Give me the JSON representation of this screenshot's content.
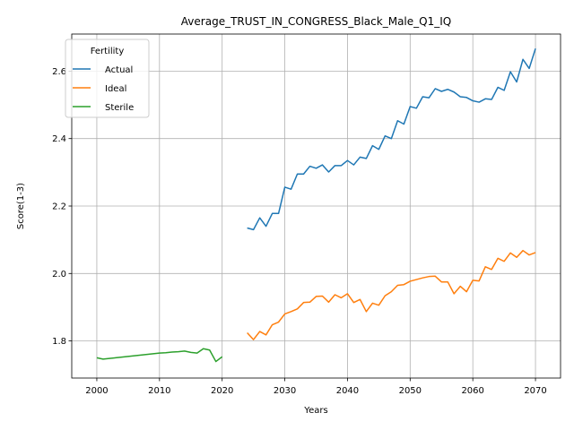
{
  "chart_data": {
    "type": "line",
    "title": "Average_TRUST_IN_CONGRESS_Black_Male_Q1_IQ",
    "xlabel": "Years",
    "ylabel": "Score(1-3)",
    "xlim": [
      1996,
      2074
    ],
    "ylim": [
      1.69,
      2.71
    ],
    "xticks": [
      2000,
      2010,
      2020,
      2030,
      2040,
      2050,
      2060,
      2070
    ],
    "yticks": [
      1.8,
      2.0,
      2.2,
      2.4,
      2.6
    ],
    "ytick_labels": [
      "1.8",
      "2.0",
      "2.2",
      "2.4",
      "2.6"
    ],
    "grid": true,
    "legend": {
      "title": "Fertility",
      "position": "top-left"
    },
    "series": [
      {
        "name": "Actual",
        "color": "#1f77b4",
        "x": [
          2024,
          2025,
          2026,
          2027,
          2028,
          2029,
          2030,
          2031,
          2032,
          2033,
          2034,
          2035,
          2036,
          2037,
          2038,
          2039,
          2040,
          2041,
          2042,
          2043,
          2044,
          2045,
          2046,
          2047,
          2048,
          2049,
          2050,
          2051,
          2052,
          2053,
          2054,
          2055,
          2056,
          2057,
          2058,
          2059,
          2060,
          2061,
          2062,
          2063,
          2064,
          2065,
          2066,
          2067,
          2068,
          2069,
          2070
        ],
        "y": [
          2.135,
          2.13,
          2.165,
          2.14,
          2.178,
          2.178,
          2.256,
          2.25,
          2.295,
          2.295,
          2.318,
          2.312,
          2.322,
          2.301,
          2.32,
          2.32,
          2.335,
          2.322,
          2.345,
          2.341,
          2.379,
          2.368,
          2.408,
          2.4,
          2.453,
          2.443,
          2.495,
          2.49,
          2.524,
          2.521,
          2.548,
          2.54,
          2.546,
          2.538,
          2.524,
          2.522,
          2.512,
          2.508,
          2.518,
          2.516,
          2.552,
          2.543,
          2.598,
          2.568,
          2.635,
          2.608,
          2.667
        ]
      },
      {
        "name": "Ideal",
        "color": "#ff7f0e",
        "x": [
          2024,
          2025,
          2026,
          2027,
          2028,
          2029,
          2030,
          2031,
          2032,
          2033,
          2034,
          2035,
          2036,
          2037,
          2038,
          2039,
          2040,
          2041,
          2042,
          2043,
          2044,
          2045,
          2046,
          2047,
          2048,
          2049,
          2050,
          2051,
          2052,
          2053,
          2054,
          2055,
          2056,
          2057,
          2058,
          2059,
          2060,
          2061,
          2062,
          2063,
          2064,
          2065,
          2066,
          2067,
          2068,
          2069,
          2070
        ],
        "y": [
          1.824,
          1.804,
          1.828,
          1.818,
          1.848,
          1.856,
          1.88,
          1.887,
          1.895,
          1.914,
          1.915,
          1.932,
          1.933,
          1.915,
          1.937,
          1.928,
          1.94,
          1.914,
          1.923,
          1.887,
          1.912,
          1.906,
          1.934,
          1.946,
          1.965,
          1.967,
          1.977,
          1.982,
          1.987,
          1.991,
          1.992,
          1.975,
          1.975,
          1.94,
          1.962,
          1.946,
          1.98,
          1.978,
          2.02,
          2.012,
          2.045,
          2.036,
          2.061,
          2.048,
          2.068,
          2.055,
          2.062
        ]
      },
      {
        "name": "Sterile",
        "color": "#2ca02c",
        "x": [
          2000,
          2001,
          2002,
          2003,
          2004,
          2005,
          2006,
          2007,
          2008,
          2009,
          2010,
          2011,
          2012,
          2013,
          2014,
          2015,
          2016,
          2017,
          2018,
          2019,
          2020
        ],
        "y": [
          1.75,
          1.746,
          1.748,
          1.75,
          1.752,
          1.754,
          1.756,
          1.758,
          1.76,
          1.762,
          1.764,
          1.765,
          1.767,
          1.768,
          1.77,
          1.766,
          1.764,
          1.777,
          1.773,
          1.739,
          1.753
        ]
      }
    ]
  }
}
